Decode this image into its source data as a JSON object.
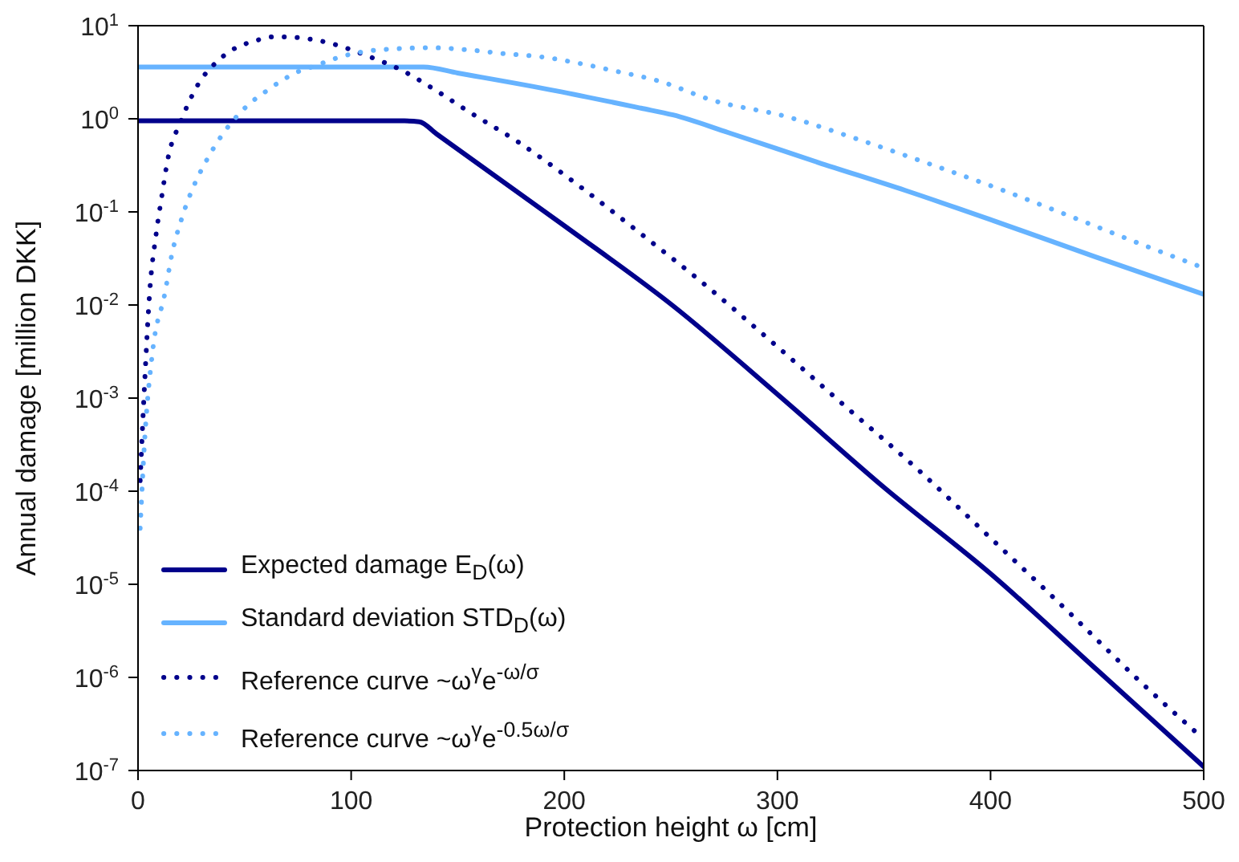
{
  "chart_data": {
    "type": "line",
    "xlabel": "Protection height  ω  [cm]",
    "ylabel": "Annual damage  [million DKK]",
    "log": "y",
    "grid": false,
    "legend": "bottom left",
    "marker": "none",
    "xlim": [
      0,
      500
    ],
    "xticks": [
      0,
      100,
      200,
      300,
      400,
      500
    ],
    "ylim": [
      1e-07,
      10
    ],
    "yticks": [
      {
        "value": 1e-07,
        "label": "10$^{-7}$"
      },
      {
        "value": 1e-06,
        "label": "10$^{-6}$"
      },
      {
        "value": 1e-05,
        "label": "10$^{-5}$"
      },
      {
        "value": 0.0001,
        "label": "10$^{-4}$"
      },
      {
        "value": 0.001,
        "label": "10$^{-3}$"
      },
      {
        "value": 0.01,
        "label": "10$^{-2}$"
      },
      {
        "value": 0.1,
        "label": "10$^{-1}$"
      },
      {
        "value": 1,
        "label": "10$^{0}$"
      },
      {
        "value": 10,
        "label": "10$^{1}$"
      }
    ],
    "series": [
      {
        "name": "Expected damage E$_{D}$(ω)",
        "color": "#00008b",
        "line_style": "solid",
        "x": [
          0,
          100,
          125,
          132,
          140,
          200,
          251,
          300,
          350,
          400,
          450,
          500
        ],
        "values": [
          0.95,
          0.95,
          0.95,
          0.93,
          0.69,
          0.071,
          0.0098,
          0.0011,
          0.00011,
          1.3e-05,
          1.2e-06,
          1.1e-07
        ]
      },
      {
        "name": "Standard deviation STD$_{D}$(ω)",
        "color": "#66b3ff",
        "line_style": "solid",
        "x": [
          0,
          100,
          134,
          150,
          196,
          236,
          251,
          277,
          319,
          360,
          401,
          449,
          500
        ],
        "values": [
          3.6,
          3.6,
          3.6,
          3.1,
          2.0,
          1.3,
          1.1,
          0.71,
          0.34,
          0.17,
          0.081,
          0.033,
          0.013
        ]
      },
      {
        "name": "Reference curve ~ω$^{γ}$e$^{-ω/σ}$",
        "color": "#00008b",
        "line_style": "dotted",
        "x": [
          1,
          3,
          5.5,
          8.5,
          11,
          14,
          20,
          27.5,
          39,
          56,
          64,
          73,
          90,
          108,
          124,
          140,
          155,
          178,
          207,
          236,
          264,
          298,
          332,
          366,
          399,
          438,
          470,
          497
        ],
        "values": [
          0.00013,
          0.0013,
          0.014,
          0.058,
          0.14,
          0.37,
          0.93,
          2.2,
          4.5,
          7.0,
          7.6,
          7.5,
          6.5,
          4.7,
          3.3,
          2.0,
          1.2,
          0.57,
          0.19,
          0.058,
          0.018,
          0.0039,
          0.00081,
          0.00017,
          3.3e-05,
          4.7e-06,
          9.1e-07,
          2.5e-07
        ]
      },
      {
        "name": "Reference curve ~ω$^{γ}$e$^{-0.5ω/σ}$",
        "color": "#66b3ff",
        "line_style": "dotted",
        "x": [
          1,
          3,
          7,
          12.5,
          16,
          20.5,
          27,
          31,
          40.6,
          46,
          52.6,
          60,
          67.4,
          75,
          83,
          92,
          100.7,
          109.5,
          118,
          137,
          155,
          172,
          190,
          208,
          225.5,
          243,
          270,
          304,
          338,
          372.6,
          406,
          440,
          474,
          498
        ],
        "values": [
          4e-05,
          0.00032,
          0.0034,
          0.013,
          0.036,
          0.085,
          0.21,
          0.32,
          0.73,
          1.04,
          1.47,
          1.97,
          2.57,
          3.2,
          3.7,
          4.4,
          5.0,
          5.4,
          5.6,
          5.8,
          5.5,
          5.0,
          4.6,
          3.9,
          3.2,
          2.6,
          1.57,
          1.06,
          0.6,
          0.32,
          0.17,
          0.085,
          0.042,
          0.026
        ]
      }
    ]
  }
}
